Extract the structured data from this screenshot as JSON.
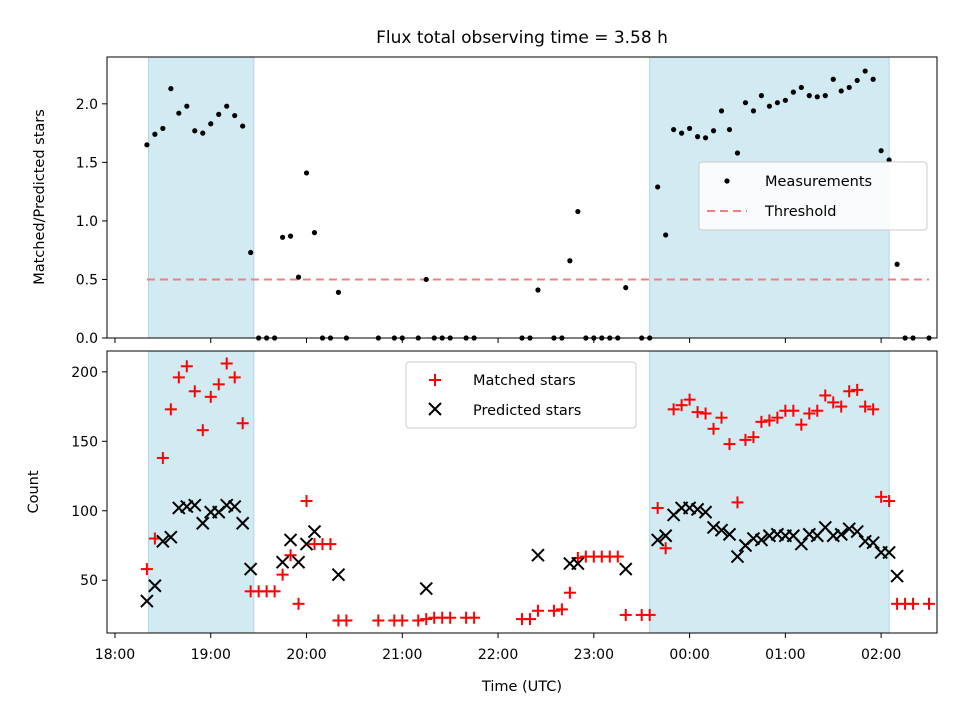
{
  "chart_data": [
    {
      "type": "scatter",
      "title": "Flux total observing time = 3.58 h",
      "xlabel": "",
      "ylabel": "Matched/Predicted stars",
      "ylim": [
        0,
        2.4
      ],
      "yticks": [
        "0.0",
        "0.5",
        "1.0",
        "1.5",
        "2.0"
      ],
      "legend_position": "center-right",
      "shaded_intervals": [
        [
          "18:21",
          "19:27"
        ],
        [
          "23:35",
          "02:05"
        ]
      ],
      "shade_color": "#add8e6",
      "threshold": {
        "name": "Threshold",
        "value": 0.5,
        "x_start": "18:20",
        "x_end": "02:30",
        "color": "#f08080"
      },
      "series": [
        {
          "name": "Measurements",
          "color": "#000000",
          "points": [
            [
              "18:20",
              1.65
            ],
            [
              "18:25",
              1.74
            ],
            [
              "18:30",
              1.79
            ],
            [
              "18:35",
              2.13
            ],
            [
              "18:40",
              1.92
            ],
            [
              "18:45",
              1.98
            ],
            [
              "18:50",
              1.77
            ],
            [
              "18:55",
              1.75
            ],
            [
              "19:00",
              1.83
            ],
            [
              "19:05",
              1.91
            ],
            [
              "19:10",
              1.98
            ],
            [
              "19:15",
              1.9
            ],
            [
              "19:20",
              1.81
            ],
            [
              "19:25",
              0.73
            ],
            [
              "19:30",
              0
            ],
            [
              "19:35",
              0
            ],
            [
              "19:40",
              0
            ],
            [
              "19:45",
              0.86
            ],
            [
              "19:50",
              0.87
            ],
            [
              "19:55",
              0.52
            ],
            [
              "20:00",
              1.41
            ],
            [
              "20:05",
              0.9
            ],
            [
              "20:10",
              0
            ],
            [
              "20:15",
              0
            ],
            [
              "20:20",
              0.39
            ],
            [
              "20:25",
              0
            ],
            [
              "20:45",
              0
            ],
            [
              "20:55",
              0
            ],
            [
              "21:00",
              0
            ],
            [
              "21:10",
              0
            ],
            [
              "21:15",
              0.5
            ],
            [
              "21:20",
              0
            ],
            [
              "21:25",
              0
            ],
            [
              "21:30",
              0
            ],
            [
              "21:40",
              0
            ],
            [
              "21:45",
              0
            ],
            [
              "22:15",
              0
            ],
            [
              "22:20",
              0
            ],
            [
              "22:25",
              0.41
            ],
            [
              "22:35",
              0
            ],
            [
              "22:40",
              0
            ],
            [
              "22:45",
              0.66
            ],
            [
              "22:50",
              1.08
            ],
            [
              "22:55",
              0
            ],
            [
              "23:00",
              0
            ],
            [
              "23:05",
              0
            ],
            [
              "23:10",
              0
            ],
            [
              "23:15",
              0
            ],
            [
              "23:20",
              0.43
            ],
            [
              "23:30",
              0
            ],
            [
              "23:35",
              0
            ],
            [
              "23:40",
              1.29
            ],
            [
              "23:45",
              0.88
            ],
            [
              "23:50",
              1.78
            ],
            [
              "23:55",
              1.75
            ],
            [
              "00:00",
              1.79
            ],
            [
              "00:05",
              1.72
            ],
            [
              "00:10",
              1.71
            ],
            [
              "00:15",
              1.77
            ],
            [
              "00:20",
              1.94
            ],
            [
              "00:25",
              1.78
            ],
            [
              "00:30",
              1.58
            ],
            [
              "00:35",
              2.01
            ],
            [
              "00:40",
              1.94
            ],
            [
              "00:45",
              2.07
            ],
            [
              "00:50",
              1.98
            ],
            [
              "00:55",
              2.01
            ],
            [
              "01:00",
              2.03
            ],
            [
              "01:05",
              2.1
            ],
            [
              "01:10",
              2.14
            ],
            [
              "01:15",
              2.07
            ],
            [
              "01:20",
              2.06
            ],
            [
              "01:25",
              2.07
            ],
            [
              "01:30",
              2.21
            ],
            [
              "01:35",
              2.11
            ],
            [
              "01:40",
              2.14
            ],
            [
              "01:45",
              2.2
            ],
            [
              "01:50",
              2.28
            ],
            [
              "01:55",
              2.21
            ],
            [
              "02:00",
              1.6
            ],
            [
              "02:05",
              1.52
            ],
            [
              "02:10",
              0.63
            ],
            [
              "02:15",
              0
            ],
            [
              "02:20",
              0
            ],
            [
              "02:30",
              0
            ]
          ]
        }
      ]
    },
    {
      "type": "scatter",
      "title": "",
      "xlabel": "Time (UTC)",
      "ylabel": "Count",
      "ylim": [
        12,
        215
      ],
      "yticks": [
        "50",
        "100",
        "150",
        "200"
      ],
      "xlim": [
        "17:55",
        "02:35"
      ],
      "xticks": [
        "18:00",
        "19:00",
        "20:00",
        "21:00",
        "22:00",
        "23:00",
        "00:00",
        "01:00",
        "02:00"
      ],
      "legend_position": "top-center",
      "shaded_intervals": [
        [
          "18:21",
          "19:27"
        ],
        [
          "23:35",
          "02:05"
        ]
      ],
      "shade_color": "#add8e6",
      "series": [
        {
          "name": "Matched stars",
          "marker": "+",
          "color": "#ff0000",
          "points": [
            [
              "18:20",
              58
            ],
            [
              "18:25",
              80
            ],
            [
              "18:30",
              138
            ],
            [
              "18:35",
              173
            ],
            [
              "18:40",
              196
            ],
            [
              "18:45",
              204
            ],
            [
              "18:50",
              186
            ],
            [
              "18:55",
              158
            ],
            [
              "19:00",
              182
            ],
            [
              "19:05",
              191
            ],
            [
              "19:10",
              206
            ],
            [
              "19:15",
              196
            ],
            [
              "19:20",
              163
            ],
            [
              "19:25",
              42
            ],
            [
              "19:30",
              42
            ],
            [
              "19:35",
              42
            ],
            [
              "19:40",
              42
            ],
            [
              "19:45",
              54
            ],
            [
              "19:50",
              68
            ],
            [
              "19:55",
              33
            ],
            [
              "20:00",
              107
            ],
            [
              "20:05",
              76
            ],
            [
              "20:10",
              76
            ],
            [
              "20:15",
              76
            ],
            [
              "20:20",
              21
            ],
            [
              "20:25",
              21
            ],
            [
              "20:45",
              21
            ],
            [
              "20:55",
              21
            ],
            [
              "21:00",
              21
            ],
            [
              "21:10",
              21
            ],
            [
              "21:15",
              22
            ],
            [
              "21:20",
              23
            ],
            [
              "21:25",
              23
            ],
            [
              "21:30",
              23
            ],
            [
              "21:40",
              23
            ],
            [
              "21:45",
              23
            ],
            [
              "22:15",
              22
            ],
            [
              "22:20",
              22
            ],
            [
              "22:25",
              28
            ],
            [
              "22:35",
              28
            ],
            [
              "22:40",
              29
            ],
            [
              "22:45",
              41
            ],
            [
              "22:50",
              66
            ],
            [
              "22:55",
              67
            ],
            [
              "23:00",
              67
            ],
            [
              "23:05",
              67
            ],
            [
              "23:10",
              67
            ],
            [
              "23:15",
              67
            ],
            [
              "23:20",
              25
            ],
            [
              "23:30",
              25
            ],
            [
              "23:35",
              25
            ],
            [
              "23:40",
              102
            ],
            [
              "23:45",
              73
            ],
            [
              "23:50",
              173
            ],
            [
              "23:55",
              176
            ],
            [
              "00:00",
              180
            ],
            [
              "00:05",
              171
            ],
            [
              "00:10",
              170
            ],
            [
              "00:15",
              159
            ],
            [
              "00:20",
              167
            ],
            [
              "00:25",
              148
            ],
            [
              "00:30",
              106
            ],
            [
              "00:35",
              151
            ],
            [
              "00:40",
              153
            ],
            [
              "00:45",
              164
            ],
            [
              "00:50",
              165
            ],
            [
              "00:55",
              167
            ],
            [
              "01:00",
              172
            ],
            [
              "01:05",
              172
            ],
            [
              "01:10",
              162
            ],
            [
              "01:15",
              170
            ],
            [
              "01:20",
              172
            ],
            [
              "01:25",
              183
            ],
            [
              "01:30",
              178
            ],
            [
              "01:35",
              175
            ],
            [
              "01:40",
              186
            ],
            [
              "01:45",
              187
            ],
            [
              "01:50",
              175
            ],
            [
              "01:55",
              173
            ],
            [
              "02:00",
              110
            ],
            [
              "02:05",
              107
            ],
            [
              "02:10",
              33
            ],
            [
              "02:15",
              33
            ],
            [
              "02:20",
              33
            ],
            [
              "02:30",
              33
            ]
          ]
        },
        {
          "name": "Predicted stars",
          "marker": "x",
          "color": "#000000",
          "points": [
            [
              "18:20",
              35
            ],
            [
              "18:25",
              46
            ],
            [
              "18:30",
              78
            ],
            [
              "18:35",
              81
            ],
            [
              "18:40",
              102
            ],
            [
              "18:45",
              103
            ],
            [
              "18:50",
              104
            ],
            [
              "18:55",
              91
            ],
            [
              "19:00",
              99
            ],
            [
              "19:05",
              99
            ],
            [
              "19:10",
              104
            ],
            [
              "19:15",
              103
            ],
            [
              "19:20",
              91
            ],
            [
              "19:25",
              58
            ],
            [
              "19:45",
              63
            ],
            [
              "19:50",
              79
            ],
            [
              "19:55",
              63
            ],
            [
              "20:00",
              76
            ],
            [
              "20:05",
              85
            ],
            [
              "20:20",
              54
            ],
            [
              "21:15",
              44
            ],
            [
              "22:25",
              68
            ],
            [
              "22:45",
              62
            ],
            [
              "22:50",
              62
            ],
            [
              "23:20",
              58
            ],
            [
              "23:40",
              79
            ],
            [
              "23:45",
              82
            ],
            [
              "23:50",
              97
            ],
            [
              "23:55",
              102
            ],
            [
              "00:00",
              102
            ],
            [
              "00:05",
              101
            ],
            [
              "00:10",
              99
            ],
            [
              "00:15",
              88
            ],
            [
              "00:20",
              86
            ],
            [
              "00:25",
              83
            ],
            [
              "00:30",
              67
            ],
            [
              "00:35",
              75
            ],
            [
              "00:40",
              80
            ],
            [
              "00:45",
              79
            ],
            [
              "00:50",
              82
            ],
            [
              "00:55",
              83
            ],
            [
              "01:00",
              82
            ],
            [
              "01:05",
              82
            ],
            [
              "01:10",
              76
            ],
            [
              "01:15",
              83
            ],
            [
              "01:20",
              82
            ],
            [
              "01:25",
              88
            ],
            [
              "01:30",
              82
            ],
            [
              "01:35",
              83
            ],
            [
              "01:40",
              87
            ],
            [
              "01:45",
              85
            ],
            [
              "01:50",
              78
            ],
            [
              "01:55",
              77
            ],
            [
              "02:00",
              70
            ],
            [
              "02:05",
              70
            ],
            [
              "02:10",
              53
            ]
          ]
        }
      ]
    }
  ]
}
